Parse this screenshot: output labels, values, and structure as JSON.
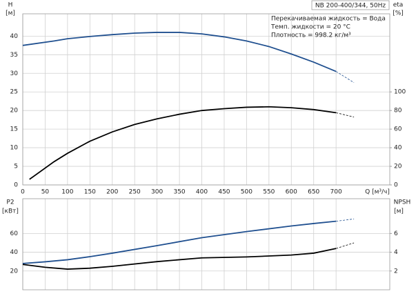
{
  "chart_data": [
    {
      "type": "line",
      "title": "NB 200-400/344, 50Hz",
      "annotations": [
        "Перекачиваемая жидкость = Вода",
        "Темп. жидкости = 20 °C",
        "Плотность = 998.2 кг/м³"
      ],
      "ylabel": "H",
      "yunit": "[м]",
      "y2label": "eta",
      "y2unit": "[%]",
      "xlabel": "Q [м³/ч]",
      "x": [
        0,
        70,
        100,
        150,
        200,
        250,
        300,
        350,
        400,
        450,
        500,
        550,
        600,
        650,
        700,
        740
      ],
      "extrapolated_from": 700,
      "series": [
        {
          "color": "#1f4f8f",
          "values": [
            37.5,
            38.7,
            39.3,
            39.9,
            40.4,
            40.8,
            41,
            41,
            40.6,
            39.8,
            38.7,
            37.2,
            35.2,
            33,
            30.5,
            27.5
          ]
        },
        {
          "color": "#000000",
          "axis": "y2",
          "values": [
            null,
            25,
            34,
            47,
            57,
            65,
            71,
            76,
            80,
            82,
            83.5,
            84,
            83,
            81,
            77.6,
            73
          ]
        }
      ],
      "eta_start": {
        "x": 15,
        "y": 6
      },
      "xlim": [
        0,
        820
      ],
      "xticks": [
        0,
        50,
        100,
        150,
        200,
        250,
        300,
        350,
        400,
        450,
        500,
        550,
        600,
        650,
        700
      ],
      "ylim": [
        0,
        46
      ],
      "yticks": [
        0,
        5,
        10,
        15,
        20,
        25,
        30,
        35,
        40
      ],
      "y2lim": [
        0,
        184
      ],
      "y2ticks": [
        0,
        20,
        40,
        60,
        80,
        100
      ],
      "grid": true
    },
    {
      "type": "line",
      "ylabel": "P2",
      "yunit": "[кВт]",
      "y2label": "NPSH",
      "y2unit": "[м]",
      "x": [
        0,
        50,
        100,
        150,
        200,
        300,
        400,
        500,
        600,
        650,
        700,
        740
      ],
      "extrapolated_from": 700,
      "series": [
        {
          "color": "#1f4f8f",
          "values": [
            28,
            29.8,
            32,
            35.3,
            39,
            47,
            55.5,
            62,
            68,
            70.6,
            73,
            75.5
          ]
        },
        {
          "color": "#000000",
          "axis": "y2",
          "values": [
            2.7,
            2.4,
            2.2,
            2.3,
            2.5,
            3.0,
            3.4,
            3.5,
            3.7,
            3.9,
            4.4,
            5.0
          ]
        }
      ],
      "xlim": [
        0,
        820
      ],
      "xticks": [
        0,
        50,
        100,
        150,
        200,
        250,
        300,
        350,
        400,
        450,
        500,
        550,
        600,
        650,
        700
      ],
      "xtick_labels": false,
      "ylim": [
        0,
        97
      ],
      "yticks": [
        20,
        40,
        60
      ],
      "y2lim": [
        0,
        9.7
      ],
      "y2ticks": [
        2,
        4,
        6
      ],
      "grid": true
    }
  ]
}
